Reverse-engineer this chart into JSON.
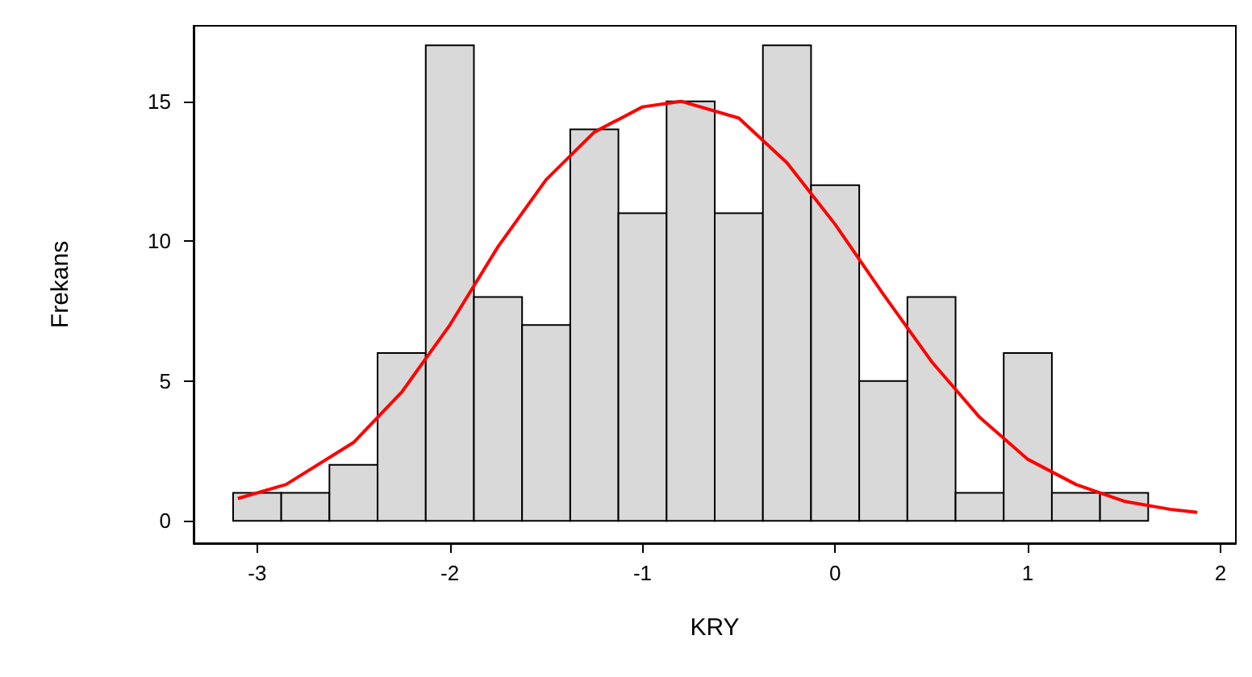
{
  "chart_data": {
    "type": "histogram",
    "xlabel": "KRY",
    "ylabel": "Frekans",
    "bins": [
      -3.125,
      -2.875,
      -2.625,
      -2.375,
      -2.125,
      -1.875,
      -1.625,
      -1.375,
      -1.125,
      -0.875,
      -0.625,
      -0.375,
      -0.125,
      0.125,
      0.375,
      0.625,
      0.875,
      1.125,
      1.375,
      1.625
    ],
    "values": [
      1,
      1,
      2,
      6,
      17,
      8,
      7,
      14,
      11,
      15,
      11,
      17,
      12,
      5,
      8,
      1,
      6,
      1,
      1
    ],
    "color": "#d9d9d9",
    "series": [
      {
        "type": "line",
        "color": "#ff0000",
        "x": [
          -3.1,
          -2.85,
          -2.5,
          -2.25,
          -2,
          -1.75,
          -1.5,
          -1.25,
          -1,
          -0.8,
          -0.5,
          -0.25,
          0,
          0.25,
          0.5,
          0.75,
          1,
          1.25,
          1.5,
          1.75,
          1.88
        ],
        "values": [
          0.8,
          1.3,
          2.8,
          4.6,
          7,
          9.8,
          12.2,
          13.9,
          14.8,
          15,
          14.4,
          12.8,
          10.6,
          8.1,
          5.7,
          3.7,
          2.2,
          1.3,
          0.7,
          0.4,
          0.3
        ]
      }
    ],
    "xlim": [
      -3.33,
      2.08
    ],
    "xticks": [
      -3,
      -2,
      -1,
      0,
      1,
      2
    ],
    "ylim": [
      -0.8,
      17.7
    ],
    "yticks": [
      0,
      5,
      10,
      15
    ],
    "grid": false,
    "line_style": "solid",
    "marker": "none"
  }
}
